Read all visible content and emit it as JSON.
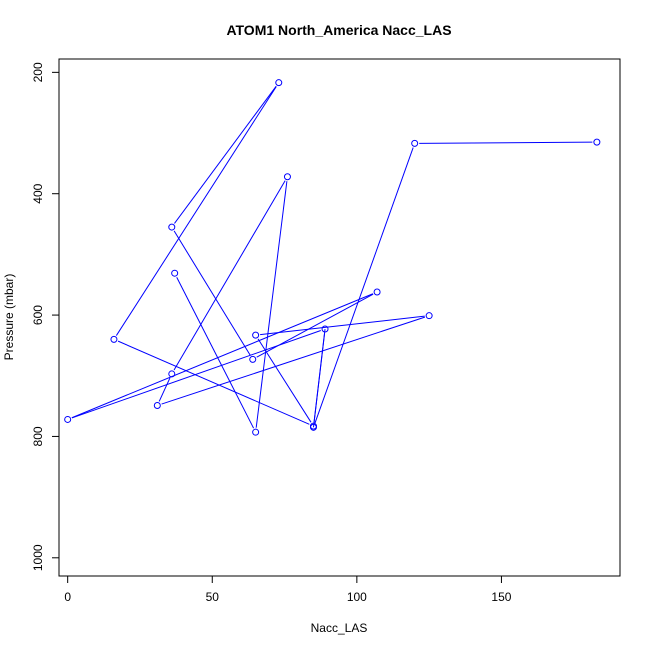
{
  "chart_data": {
    "type": "line",
    "title": "ATOM1 North_America Nacc_LAS",
    "xlabel": "Nacc_LAS",
    "ylabel": "Pressure (mbar)",
    "xlim": [
      -3,
      191
    ],
    "ylim": [
      1030,
      178
    ],
    "y_reversed": true,
    "xticks": [
      0,
      50,
      100,
      150
    ],
    "yticks": [
      200,
      400,
      600,
      800,
      1000
    ],
    "grid": false,
    "legend": "none",
    "series_color": "#0000ff",
    "series": [
      {
        "points": [
          [
            183,
            315
          ],
          [
            120,
            317
          ],
          [
            85,
            785
          ],
          [
            89,
            623
          ],
          [
            0,
            772
          ],
          [
            107,
            562
          ],
          [
            64,
            673
          ],
          [
            36,
            455
          ],
          [
            73,
            217
          ],
          [
            16,
            640
          ],
          [
            85,
            783
          ],
          [
            65,
            633
          ],
          [
            125,
            601
          ],
          [
            31,
            749
          ],
          [
            36,
            697
          ],
          [
            76,
            372
          ],
          [
            65,
            793
          ],
          [
            37,
            531
          ]
        ],
        "offscreen_segments": [
          [
            [
              85,
              785
            ],
            [
              89,
              623
            ]
          ]
        ]
      }
    ]
  }
}
